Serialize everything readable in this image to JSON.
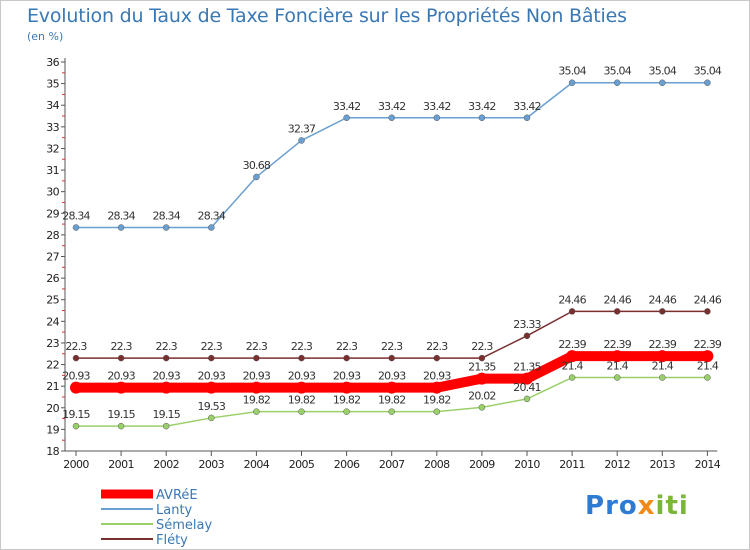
{
  "title": "Evolution du Taux de Taxe Foncière sur les Propriétés Non Bâties",
  "subtitle": "(en %)",
  "logo_text": "Proxiti",
  "colors": {
    "AVRéE": "#ff0000",
    "Lanty": "#6a9fd1",
    "Sémelay": "#99d06a",
    "Fléty": "#7a2f2f"
  },
  "chart_data": {
    "type": "line",
    "title": "Evolution du Taux de Taxe Foncière sur les Propriétés Non Bâties",
    "ylabel": "(en %)",
    "xlabel": "",
    "x": [
      "2000",
      "2001",
      "2002",
      "2003",
      "2004",
      "2005",
      "2006",
      "2007",
      "2008",
      "2009",
      "2010",
      "2011",
      "2012",
      "2013",
      "2014"
    ],
    "ylim": [
      18,
      36
    ],
    "yticks": [
      "18",
      "19",
      "20",
      "21",
      "22",
      "23",
      "24",
      "25",
      "26",
      "27",
      "28",
      "29",
      "30",
      "31",
      "32",
      "33",
      "34",
      "35",
      "36"
    ],
    "grid": false,
    "legend_position": "bottom-left",
    "series": [
      {
        "name": "Lanty",
        "values": [
          28.34,
          28.34,
          28.34,
          28.34,
          30.68,
          32.37,
          33.42,
          33.42,
          33.42,
          33.42,
          33.42,
          35.04,
          35.04,
          35.04,
          35.04
        ],
        "labels": [
          "28.34",
          "28.34",
          "28.34",
          "28.34",
          "30.68",
          "32.37",
          "33.42",
          "33.42",
          "33.42",
          "33.42",
          "33.42",
          "35.04",
          "35.04",
          "35.04",
          "35.04"
        ]
      },
      {
        "name": "Fléty",
        "values": [
          22.3,
          22.3,
          22.3,
          22.3,
          22.3,
          22.3,
          22.3,
          22.3,
          22.3,
          22.3,
          23.33,
          24.46,
          24.46,
          24.46,
          24.46
        ],
        "labels": [
          "22.3",
          "22.3",
          "22.3",
          "22.3",
          "22.3",
          "22.3",
          "22.3",
          "22.3",
          "22.3",
          "22.3",
          "23.33",
          "24.46",
          "24.46",
          "24.46",
          "24.46"
        ]
      },
      {
        "name": "AVRéE",
        "values": [
          20.93,
          20.93,
          20.93,
          20.93,
          20.93,
          20.93,
          20.93,
          20.93,
          20.93,
          21.35,
          21.35,
          22.39,
          22.39,
          22.39,
          22.39
        ],
        "labels": [
          "20.93",
          "20.93",
          "20.93",
          "20.93",
          "20.93",
          "20.93",
          "20.93",
          "20.93",
          "20.93",
          "21.35",
          "21.35",
          "22.39",
          "22.39",
          "22.39",
          "22.39"
        ]
      },
      {
        "name": "Sémelay",
        "values": [
          19.15,
          19.15,
          19.15,
          19.53,
          19.82,
          19.82,
          19.82,
          19.82,
          19.82,
          20.02,
          20.41,
          21.4,
          21.4,
          21.4,
          21.4
        ],
        "labels": [
          "19.15",
          "19.15",
          "19.15",
          "19.53",
          "19.82",
          "19.82",
          "19.82",
          "19.82",
          "19.82",
          "20.02",
          "20.41",
          "21.4",
          "21.4",
          "21.4",
          "21.4"
        ]
      }
    ],
    "legend": [
      "AVRéE",
      "Lanty",
      "Sémelay",
      "Fléty"
    ]
  }
}
